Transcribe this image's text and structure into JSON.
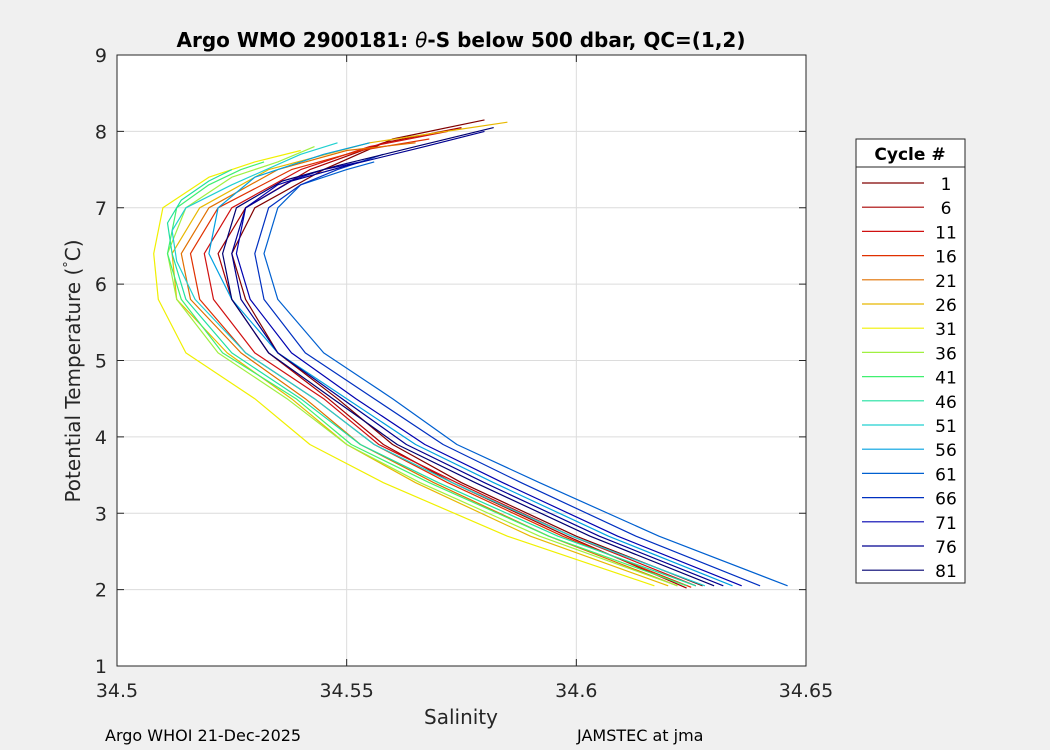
{
  "figure": {
    "footer_left": "Argo WHOI 21-Dec-2025",
    "footer_right": "JAMSTEC at jma"
  },
  "chart_data": {
    "type": "line",
    "title": "Argo WMO 2900181: θ-S below 500 dbar,  QC=(1,2)",
    "title_parts": {
      "prefix": "Argo WMO 2900181: ",
      "symbol": "θ",
      "suffix": "-S below 500 dbar,  QC=(1,2)"
    },
    "xlabel": "Salinity",
    "ylabel": "Potential Temperature (°C)",
    "ylabel_parts": {
      "main": "Potential Temperature (",
      "degree": "°",
      "end": "C)"
    },
    "xlim": [
      34.5,
      34.65
    ],
    "ylim": [
      1,
      9
    ],
    "xticks": [
      34.5,
      34.55,
      34.6,
      34.65
    ],
    "xtick_labels": [
      "34.5",
      "34.55",
      "34.6",
      "34.65"
    ],
    "yticks": [
      1,
      2,
      3,
      4,
      5,
      6,
      7,
      8,
      9
    ],
    "ytick_labels": [
      "1",
      "2",
      "3",
      "4",
      "5",
      "6",
      "7",
      "8",
      "9"
    ],
    "grid": true,
    "legend": {
      "title": "Cycle #",
      "placement": "outside-right",
      "entries": [
        {
          "label": "1",
          "color": "#800000"
        },
        {
          "label": "6",
          "color": "#a80000"
        },
        {
          "label": "11",
          "color": "#d01010"
        },
        {
          "label": "16",
          "color": "#e03000"
        },
        {
          "label": "21",
          "color": "#e07000"
        },
        {
          "label": "26",
          "color": "#e8b800"
        },
        {
          "label": "31",
          "color": "#f0f000"
        },
        {
          "label": "36",
          "color": "#a0f040"
        },
        {
          "label": "41",
          "color": "#40f070"
        },
        {
          "label": "46",
          "color": "#20e0a0"
        },
        {
          "label": "51",
          "color": "#20d0d0"
        },
        {
          "label": "56",
          "color": "#00a0e0"
        },
        {
          "label": "61",
          "color": "#0060d0"
        },
        {
          "label": "66",
          "color": "#0030c0"
        },
        {
          "label": "71",
          "color": "#0000b0"
        },
        {
          "label": "76",
          "color": "#000090"
        },
        {
          "label": "81",
          "color": "#000070"
        }
      ]
    },
    "series": [
      {
        "name": "1",
        "color": "#800000",
        "s": [
          34.6275,
          34.6,
          34.575,
          34.56,
          34.548,
          34.535,
          34.528,
          34.525,
          34.53,
          34.545,
          34.56,
          34.58
        ],
        "theta": [
          2.05,
          2.7,
          3.4,
          3.9,
          4.5,
          5.1,
          5.8,
          6.4,
          7.0,
          7.5,
          7.9,
          8.15
        ]
      },
      {
        "name": "6",
        "color": "#a80000",
        "s": [
          34.624,
          34.598,
          34.573,
          34.558,
          34.546,
          34.533,
          34.525,
          34.522,
          34.528,
          34.542,
          34.558,
          34.575
        ],
        "theta": [
          2.02,
          2.7,
          3.4,
          3.9,
          4.5,
          5.1,
          5.8,
          6.4,
          7.0,
          7.5,
          7.85,
          8.05
        ]
      },
      {
        "name": "11",
        "color": "#d01010",
        "s": [
          34.626,
          34.599,
          34.574,
          34.557,
          34.545,
          34.53,
          34.521,
          34.519,
          34.525,
          34.54,
          34.555,
          34.572
        ],
        "theta": [
          2.05,
          2.7,
          3.4,
          3.9,
          4.5,
          5.1,
          5.8,
          6.4,
          7.0,
          7.5,
          7.8,
          8.0
        ]
      },
      {
        "name": "16",
        "color": "#e03000",
        "s": [
          34.625,
          34.597,
          34.572,
          34.556,
          34.543,
          34.528,
          34.518,
          34.516,
          34.522,
          34.538,
          34.553,
          34.568
        ],
        "theta": [
          2.03,
          2.7,
          3.4,
          3.9,
          4.5,
          5.1,
          5.8,
          6.4,
          7.0,
          7.5,
          7.75,
          7.9
        ]
      },
      {
        "name": "21",
        "color": "#e07000",
        "s": [
          34.622,
          34.594,
          34.569,
          34.553,
          34.541,
          34.527,
          34.516,
          34.514,
          34.52,
          34.535,
          34.55,
          34.565
        ],
        "theta": [
          2.05,
          2.7,
          3.4,
          3.9,
          4.5,
          5.1,
          5.8,
          6.4,
          7.0,
          7.5,
          7.75,
          7.85
        ]
      },
      {
        "name": "26",
        "color": "#e8b800",
        "s": [
          34.62,
          34.59,
          34.565,
          34.55,
          34.538,
          34.524,
          34.513,
          34.512,
          34.518,
          34.533,
          34.555,
          34.585
        ],
        "theta": [
          2.05,
          2.7,
          3.4,
          3.9,
          4.5,
          5.1,
          5.8,
          6.4,
          7.0,
          7.5,
          7.85,
          8.12
        ]
      },
      {
        "name": "31",
        "color": "#f0f000",
        "s": [
          34.617,
          34.585,
          34.558,
          34.542,
          34.53,
          34.515,
          34.509,
          34.508,
          34.51,
          34.52,
          34.53,
          34.54
        ],
        "theta": [
          2.05,
          2.7,
          3.4,
          3.9,
          4.5,
          5.1,
          5.8,
          6.4,
          7.0,
          7.4,
          7.6,
          7.75
        ]
      },
      {
        "name": "36",
        "color": "#a0f040",
        "s": [
          34.622,
          34.592,
          34.566,
          34.55,
          34.537,
          34.522,
          34.513,
          34.511,
          34.515,
          34.525,
          34.535,
          34.543
        ],
        "theta": [
          2.05,
          2.7,
          3.4,
          3.9,
          4.5,
          5.1,
          5.8,
          6.4,
          7.0,
          7.4,
          7.6,
          7.8
        ]
      },
      {
        "name": "41",
        "color": "#40f070",
        "s": [
          34.624,
          34.594,
          34.568,
          34.551,
          34.539,
          34.523,
          34.514,
          34.511,
          34.513,
          34.52,
          34.527,
          34.532
        ],
        "theta": [
          2.05,
          2.7,
          3.4,
          3.9,
          4.5,
          5.1,
          5.8,
          6.4,
          7.0,
          7.3,
          7.5,
          7.6
        ]
      },
      {
        "name": "46",
        "color": "#20e0a0",
        "s": [
          34.626,
          34.596,
          34.57,
          34.553,
          34.54,
          34.525,
          34.515,
          34.512,
          34.511,
          34.514,
          34.52,
          34.525
        ],
        "theta": [
          2.05,
          2.7,
          3.4,
          3.9,
          4.5,
          5.1,
          5.8,
          6.4,
          6.8,
          7.1,
          7.35,
          7.5
        ]
      },
      {
        "name": "51",
        "color": "#20d0d0",
        "s": [
          34.628,
          34.599,
          34.573,
          34.556,
          34.543,
          34.528,
          34.517,
          34.513,
          34.512,
          34.515,
          34.525,
          34.54,
          34.548
        ],
        "theta": [
          2.05,
          2.7,
          3.4,
          3.9,
          4.5,
          5.1,
          5.8,
          6.3,
          6.7,
          7.0,
          7.3,
          7.7,
          7.85
        ]
      },
      {
        "name": "56",
        "color": "#00a0e0",
        "s": [
          34.634,
          34.607,
          34.582,
          34.565,
          34.55,
          34.535,
          34.525,
          34.52,
          34.522,
          34.53,
          34.545,
          34.555
        ],
        "theta": [
          2.05,
          2.7,
          3.4,
          3.9,
          4.5,
          5.1,
          5.8,
          6.4,
          7.0,
          7.4,
          7.7,
          7.85
        ]
      },
      {
        "name": "61",
        "color": "#0060d0",
        "s": [
          34.646,
          34.618,
          34.592,
          34.574,
          34.56,
          34.545,
          34.535,
          34.532,
          34.535,
          34.54,
          34.55,
          34.556
        ],
        "theta": [
          2.05,
          2.7,
          3.4,
          3.9,
          4.5,
          5.1,
          5.8,
          6.4,
          7.0,
          7.3,
          7.5,
          7.6
        ]
      },
      {
        "name": "66",
        "color": "#0030c0",
        "s": [
          34.64,
          34.613,
          34.588,
          34.571,
          34.556,
          34.541,
          34.532,
          34.53,
          34.533,
          34.54,
          34.548,
          34.558
        ],
        "theta": [
          2.05,
          2.7,
          3.4,
          3.9,
          4.5,
          5.1,
          5.8,
          6.4,
          7.0,
          7.3,
          7.5,
          7.7
        ]
      },
      {
        "name": "71",
        "color": "#0000b0",
        "s": [
          34.636,
          34.609,
          34.584,
          34.567,
          34.552,
          34.538,
          34.529,
          34.526,
          34.528,
          34.535,
          34.545,
          34.553
        ],
        "theta": [
          2.05,
          2.7,
          3.4,
          3.9,
          4.5,
          5.1,
          5.8,
          6.4,
          7.0,
          7.3,
          7.5,
          7.6
        ]
      },
      {
        "name": "76",
        "color": "#000090",
        "s": [
          34.632,
          34.605,
          34.58,
          34.563,
          34.549,
          34.535,
          34.527,
          34.525,
          34.528,
          34.538,
          34.55,
          34.567,
          34.58
        ],
        "theta": [
          2.05,
          2.7,
          3.4,
          3.9,
          4.5,
          5.1,
          5.8,
          6.4,
          7.0,
          7.35,
          7.55,
          7.8,
          8.0
        ]
      },
      {
        "name": "81",
        "color": "#000070",
        "s": [
          34.63,
          34.603,
          34.578,
          34.561,
          34.547,
          34.533,
          34.525,
          34.523,
          34.526,
          34.536,
          34.548,
          34.565,
          34.582
        ],
        "theta": [
          2.05,
          2.7,
          3.4,
          3.9,
          4.5,
          5.1,
          5.8,
          6.4,
          7.0,
          7.35,
          7.55,
          7.8,
          8.05
        ]
      }
    ]
  }
}
